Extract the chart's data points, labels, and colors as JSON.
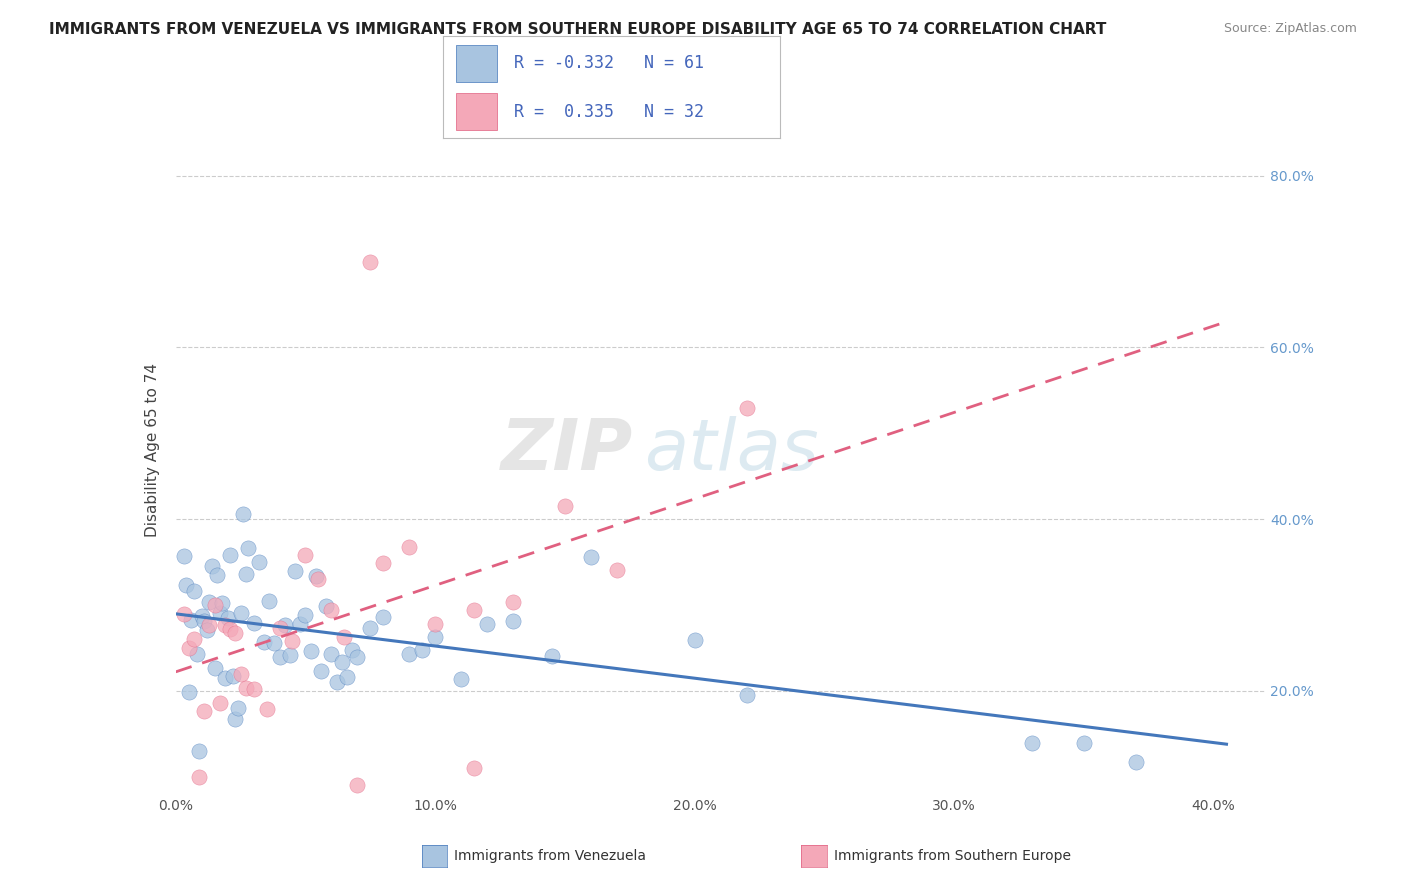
{
  "title": "IMMIGRANTS FROM VENEZUELA VS IMMIGRANTS FROM SOUTHERN EUROPE DISABILITY AGE 65 TO 74 CORRELATION CHART",
  "source": "Source: ZipAtlas.com",
  "ylabel": "Disability Age 65 to 74",
  "xlim": [
    0.0,
    0.42
  ],
  "ylim": [
    0.08,
    0.88
  ],
  "xticks": [
    0.0,
    0.05,
    0.1,
    0.15,
    0.2,
    0.25,
    0.3,
    0.35,
    0.4
  ],
  "xticklabels": [
    "0.0%",
    "",
    "10.0%",
    "",
    "20.0%",
    "",
    "30.0%",
    "",
    "40.0%"
  ],
  "yticks": [
    0.2,
    0.4,
    0.6,
    0.8
  ],
  "yticklabels": [
    "20.0%",
    "40.0%",
    "60.0%",
    "80.0%"
  ],
  "legend_R_blue": "-0.332",
  "legend_N_blue": "61",
  "legend_R_pink": "0.335",
  "legend_N_pink": "32",
  "legend_label_blue": "Immigrants from Venezuela",
  "legend_label_pink": "Immigrants from Southern Europe",
  "blue_color": "#A8C4E0",
  "pink_color": "#F4A8B8",
  "blue_line_color": "#4477BB",
  "pink_line_color": "#E06080",
  "background_color": "#FFFFFF",
  "grid_color": "#CCCCCC",
  "text_color_blue": "#4466BB",
  "watermark_color": "#DDDDDD",
  "tick_label_color": "#6699CC"
}
